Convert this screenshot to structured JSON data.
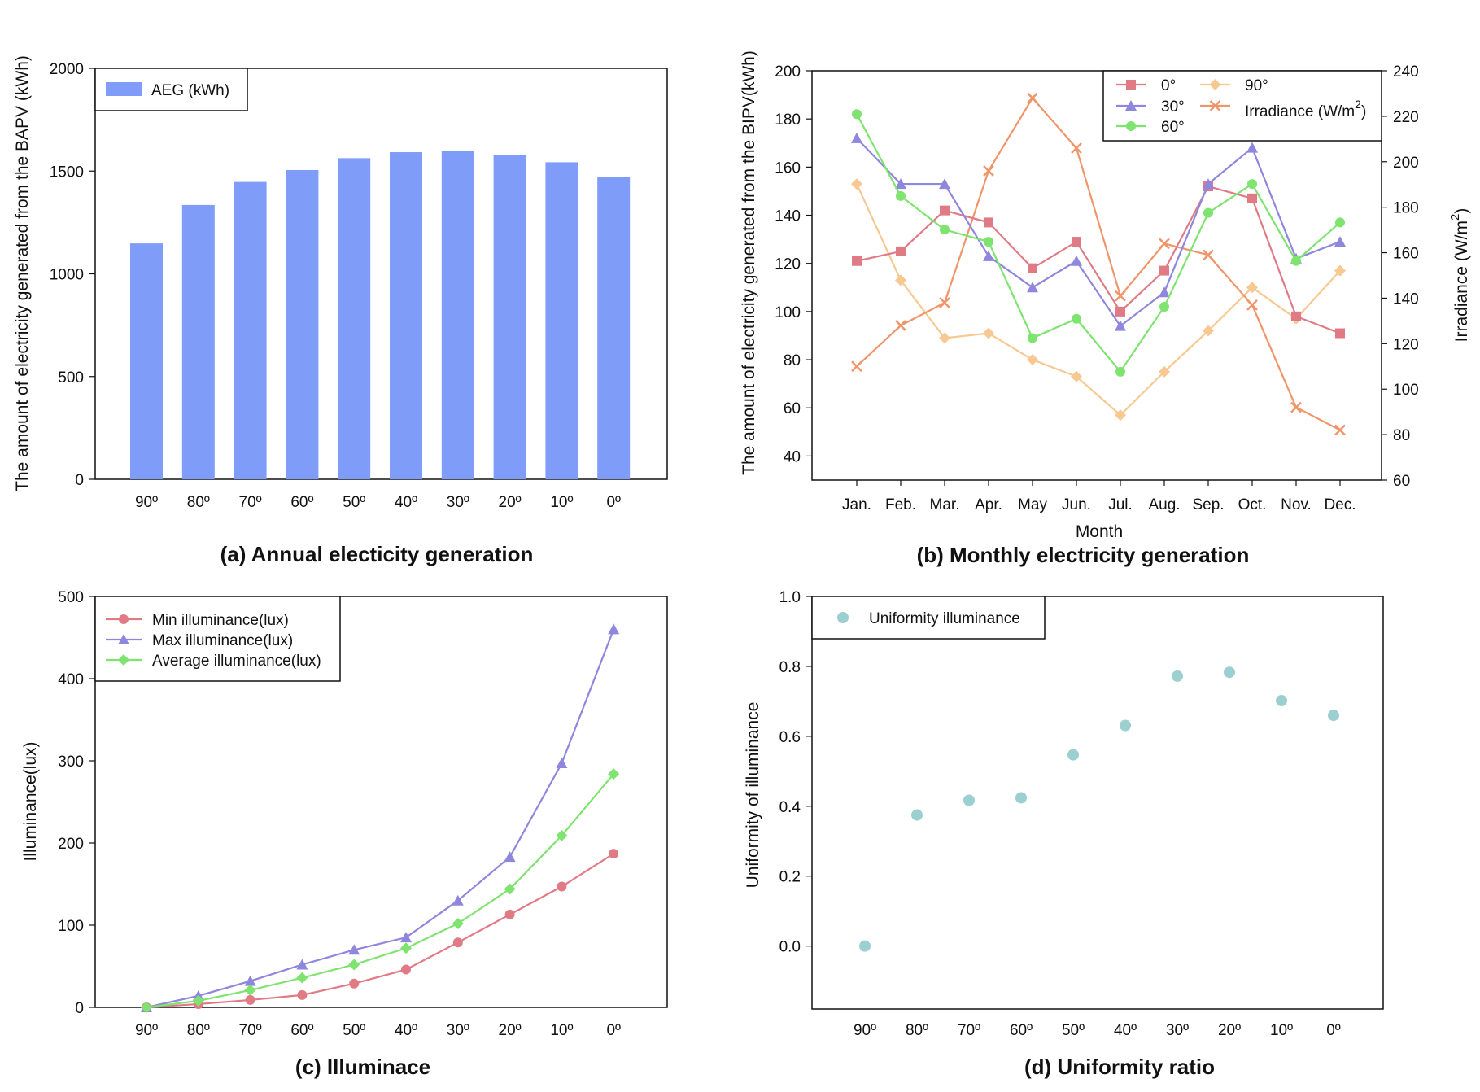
{
  "chart_data": [
    {
      "id": "a",
      "type": "bar",
      "caption": "(a) Annual electicity generation",
      "ylabel": "The amount of electricity generated from the BAPV (kWh)",
      "xlabel": "",
      "ylim": [
        0,
        2000
      ],
      "yticks": [
        0,
        500,
        1000,
        1500,
        2000
      ],
      "categories": [
        "90º",
        "80º",
        "70º",
        "60º",
        "50º",
        "40º",
        "30º",
        "20º",
        "10º",
        "0º"
      ],
      "series": [
        {
          "name": "AEG (kWh)",
          "color": "#7f9cf9",
          "values": [
            1148,
            1335,
            1447,
            1505,
            1563,
            1592,
            1600,
            1580,
            1543,
            1472
          ]
        }
      ]
    },
    {
      "id": "b",
      "type": "line",
      "caption": "(b) Monthly electricity generation",
      "ylabel": "The amount of electricity generated from the BIPV(kWh)",
      "ylabel2": "Irradiance (W/m",
      "ylabel2_sup": "2",
      "ylabel2_end": ")",
      "xlabel": "Month",
      "ylim": [
        30,
        200
      ],
      "yticks": [
        40,
        60,
        80,
        100,
        120,
        140,
        160,
        180,
        200
      ],
      "ylim2": [
        60,
        240
      ],
      "yticks2": [
        60,
        80,
        100,
        120,
        140,
        160,
        180,
        200,
        220,
        240
      ],
      "categories": [
        "Jan.",
        "Feb.",
        "Mar.",
        "Apr.",
        "May",
        "Jun.",
        "Jul.",
        "Aug.",
        "Sep.",
        "Oct.",
        "Nov.",
        "Dec."
      ],
      "series": [
        {
          "name": "0°",
          "marker": "square",
          "color": "#e07b86",
          "axis": "left",
          "values": [
            121,
            125,
            142,
            137,
            118,
            129,
            100,
            117,
            152,
            147,
            98,
            91
          ]
        },
        {
          "name": "30°",
          "marker": "triangle",
          "color": "#8f86de",
          "axis": "left",
          "values": [
            172,
            153,
            153,
            123,
            110,
            121,
            94,
            108,
            153,
            168,
            122,
            129
          ]
        },
        {
          "name": "60°",
          "marker": "circle",
          "color": "#7ee36f",
          "axis": "left",
          "values": [
            182,
            148,
            134,
            129,
            89,
            97,
            75,
            102,
            141,
            153,
            121,
            137
          ]
        },
        {
          "name": "90°",
          "marker": "diamond",
          "color": "#f7c891",
          "axis": "left",
          "values": [
            153,
            113,
            89,
            91,
            80,
            73,
            57,
            75,
            92,
            110,
            97,
            117
          ]
        },
        {
          "name": "Irradiance (W/m",
          "name_sup": "2",
          "name_end": ")",
          "marker": "x",
          "color": "#f0956a",
          "axis": "right",
          "values": [
            110,
            128,
            138,
            196,
            228,
            206,
            141,
            164,
            159,
            137,
            92,
            82
          ]
        }
      ]
    },
    {
      "id": "c",
      "type": "line",
      "caption": "(c) Illuminace",
      "ylabel": "Illuminance(lux)",
      "xlabel": "",
      "ylim": [
        0,
        500
      ],
      "yticks": [
        0,
        100,
        200,
        300,
        400,
        500
      ],
      "categories": [
        "90º",
        "80º",
        "70º",
        "60º",
        "50º",
        "40º",
        "30º",
        "20º",
        "10º",
        "0º"
      ],
      "series": [
        {
          "name": "Min illuminance(lux)",
          "marker": "circle",
          "color": "#e07b86",
          "values": [
            0,
            4,
            9,
            15,
            29,
            46,
            79,
            113,
            147,
            187
          ]
        },
        {
          "name": "Max illuminance(lux)",
          "marker": "triangle",
          "color": "#8f86de",
          "values": [
            0,
            14,
            32,
            52,
            70,
            85,
            130,
            183,
            297,
            460
          ]
        },
        {
          "name": "Average illuminance(lux)",
          "marker": "diamond",
          "color": "#7ee36f",
          "values": [
            0,
            8,
            21,
            36,
            52,
            72,
            102,
            144,
            209,
            284
          ]
        }
      ]
    },
    {
      "id": "d",
      "type": "scatter",
      "caption": "(d) Uniformity ratio",
      "ylabel": "Uniformity of illuminance",
      "xlabel": "",
      "ylim": [
        -0.18,
        1.0
      ],
      "yticks": [
        "0.0",
        "0.2",
        "0.4",
        "0.6",
        "0.8",
        "1.0"
      ],
      "categories": [
        "90º",
        "80º",
        "70º",
        "60º",
        "50º",
        "40º",
        "30º",
        "20º",
        "10º",
        "0º"
      ],
      "series": [
        {
          "name": "Uniformity illuminance",
          "marker": "circle",
          "color": "#9ccfcf",
          "values": [
            0.0,
            0.375,
            0.417,
            0.424,
            0.547,
            0.631,
            0.772,
            0.783,
            0.702,
            0.66
          ]
        }
      ]
    }
  ]
}
